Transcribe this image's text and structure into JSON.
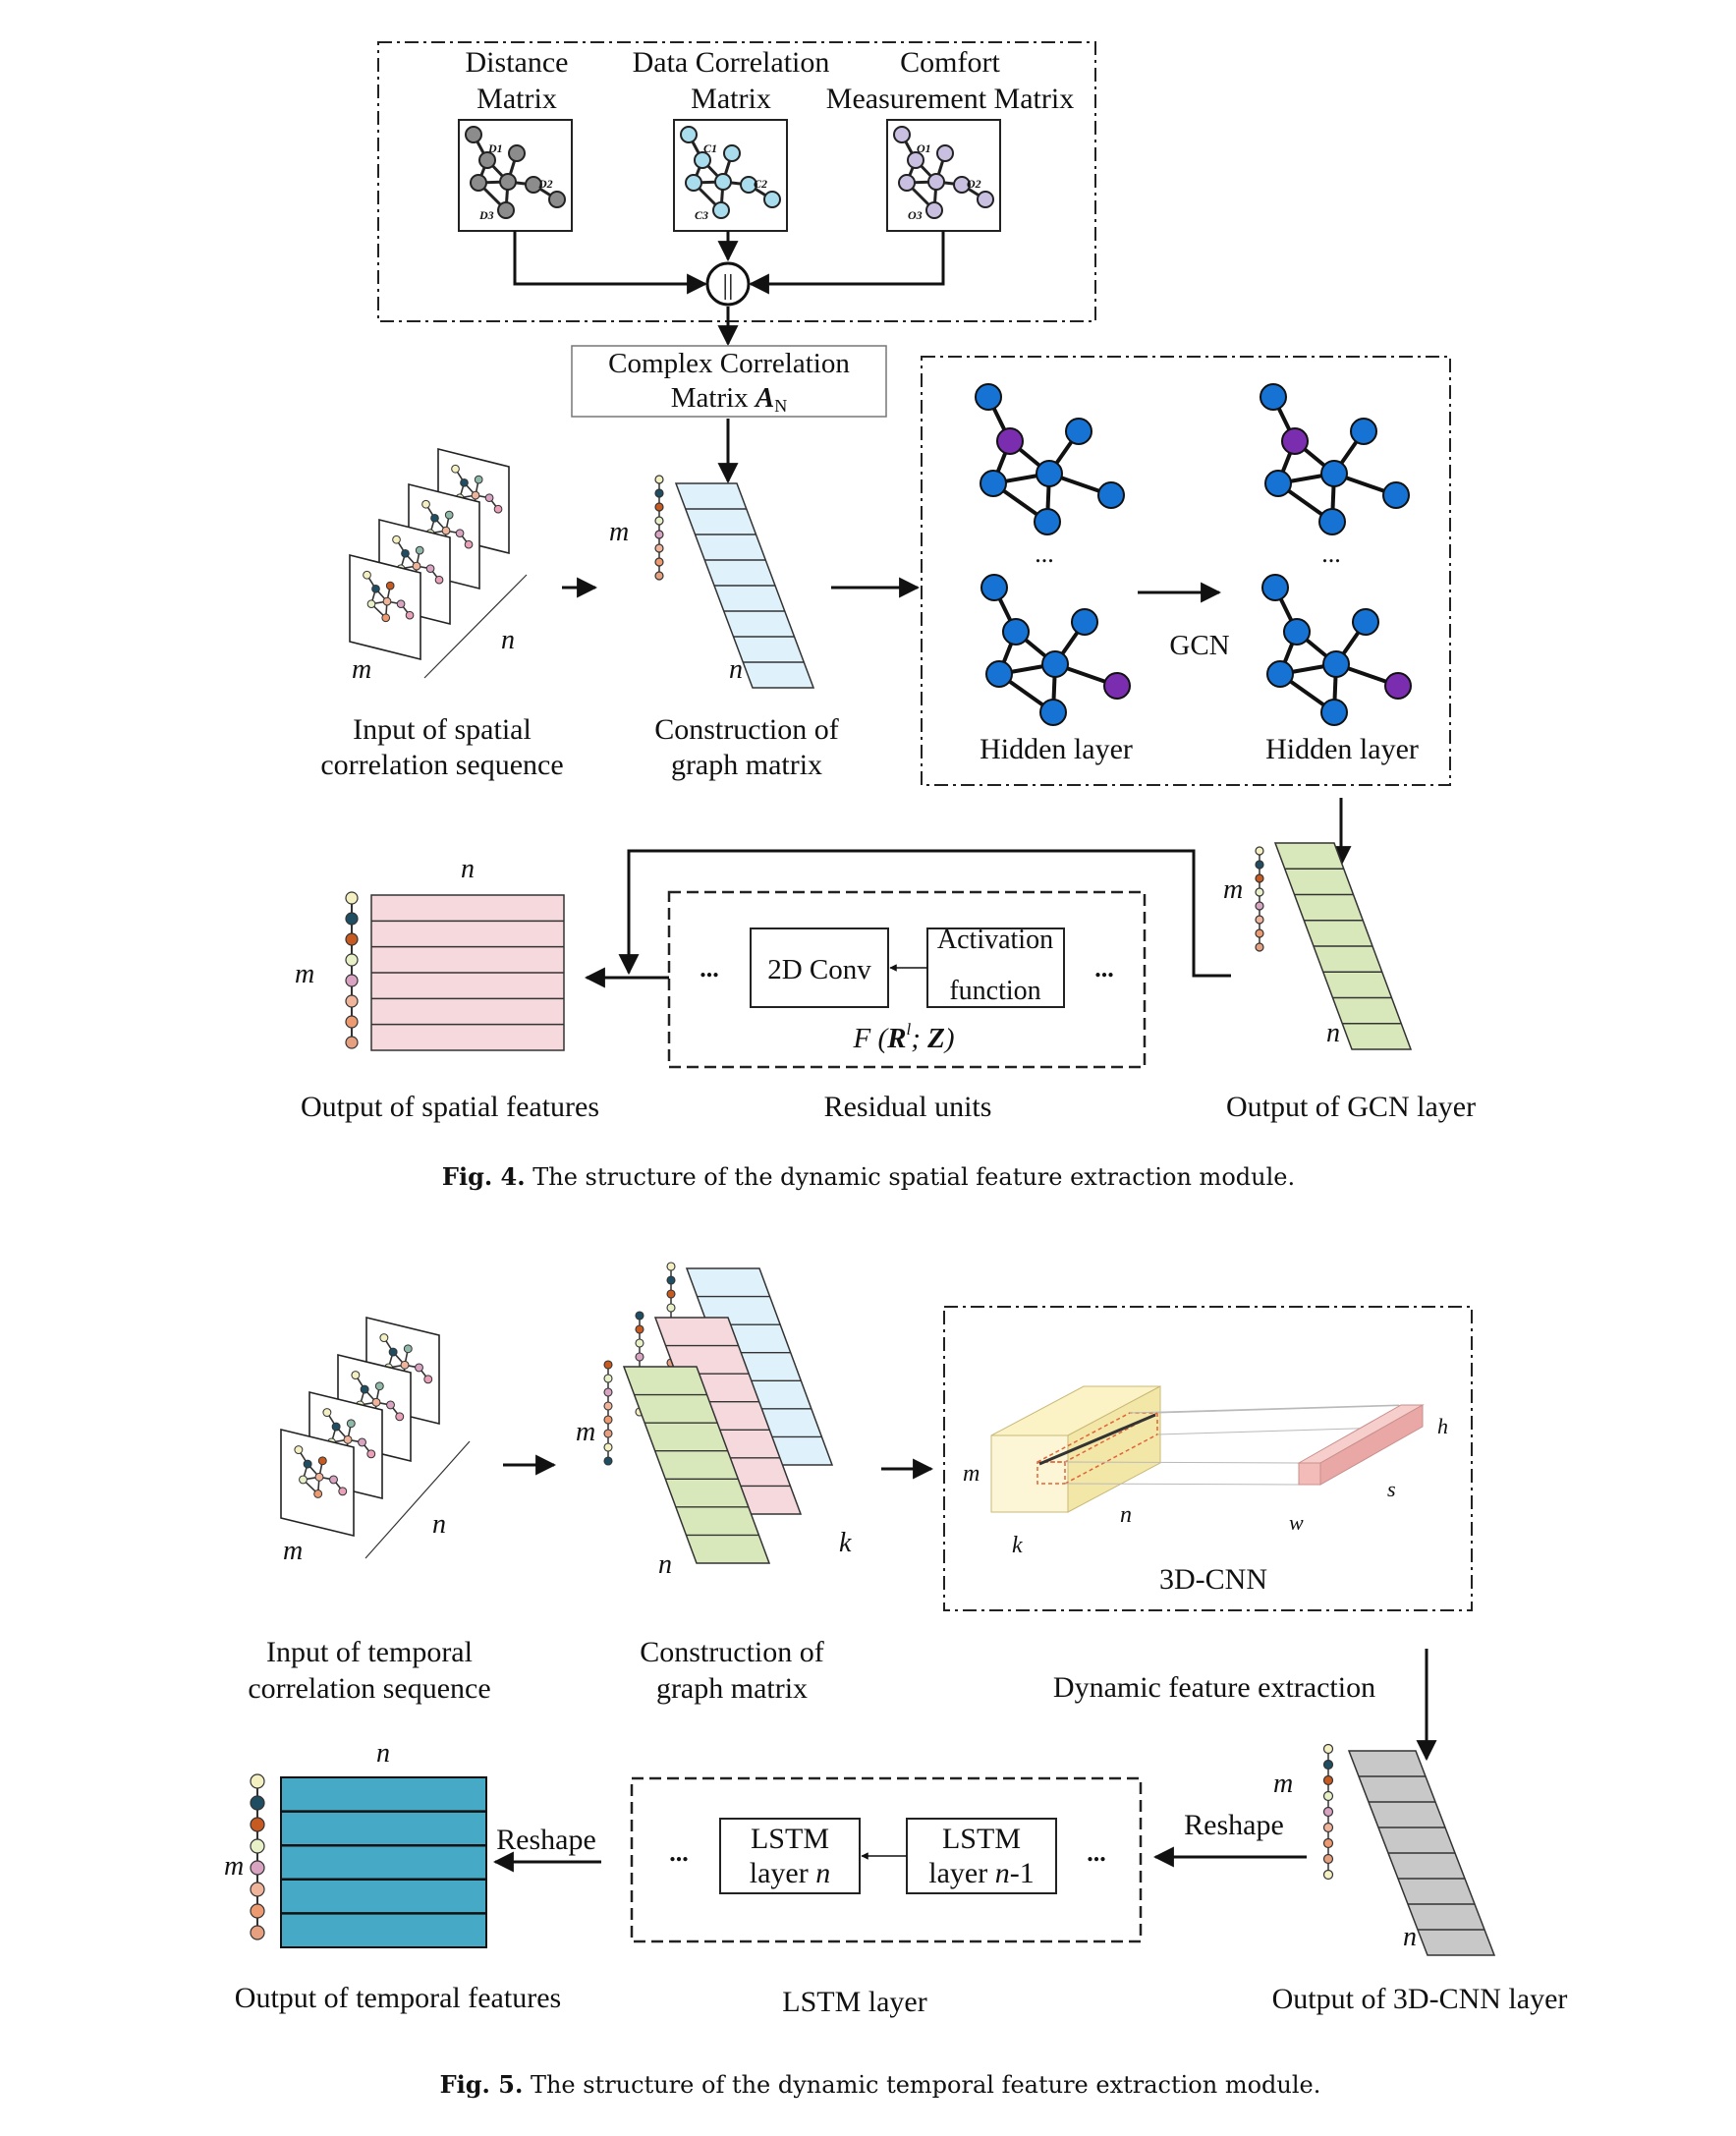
{
  "fig4": {
    "inputs": {
      "distance": [
        "Distance",
        "Matrix"
      ],
      "data_corr": [
        "Data Correlation",
        "Matrix"
      ],
      "comfort": [
        "Comfort",
        "Measurement Matrix"
      ],
      "d_nodes": [
        "D1",
        "D2",
        "D3"
      ],
      "c_nodes": [
        "C1",
        "C2",
        "C3"
      ],
      "o_nodes": [
        "O1",
        "O2",
        "O3"
      ]
    },
    "concat_symbol": "||",
    "complex_matrix": [
      "Complex Correlation",
      "Matrix ",
      "A",
      "N"
    ],
    "dim_m": "m",
    "dim_n": "n",
    "dots": "...",
    "input_label": [
      "Input of spatial",
      "correlation sequence"
    ],
    "construction_label": [
      "Construction of",
      "graph matrix"
    ],
    "gcn_label": "GCN",
    "hidden_label": "Hidden layer",
    "residual": {
      "conv": "2D Conv",
      "activation": [
        "Activation",
        "function"
      ],
      "formula": {
        "F": "F",
        "open": "(",
        "R": "R",
        "sup": "l",
        "sep": "; ",
        "Z": "Z",
        "close": ")"
      },
      "label": "Residual units"
    },
    "output_spatial_label": "Output of spatial features",
    "output_gcn_label": "Output of GCN layer",
    "caption": {
      "num": "Fig. 4.",
      "text": "The structure of the dynamic spatial feature extraction module."
    }
  },
  "fig5": {
    "input_label": [
      "Input of temporal",
      "correlation sequence"
    ],
    "construction_label": [
      "Construction of",
      "graph matrix"
    ],
    "dim_k": "k",
    "dim_m": "m",
    "dim_n": "n",
    "cnn_dims": {
      "h": "h",
      "s": "s",
      "w": "w"
    },
    "cnn_label": "3D-CNN",
    "dynamic_label": "Dynamic feature extraction",
    "reshape_label": "Reshape",
    "lstm_n": [
      "LSTM",
      "layer ",
      "n"
    ],
    "lstm_n1": [
      "LSTM",
      "layer ",
      "n",
      "-1"
    ],
    "dots": "...",
    "output_temporal_label": "Output of temporal features",
    "lstm_layer_label": "LSTM layer",
    "output_cnn_label": "Output of 3D-CNN layer",
    "caption": {
      "num": "Fig. 5.",
      "text": "The structure of the dynamic temporal feature extraction module."
    }
  },
  "colors": {
    "gcn_blue": "#1673d4",
    "gcn_purple": "#7b2db0",
    "light_blue": "#dff1fb",
    "pink": "#f6d9dc",
    "green": "#d9e8bb",
    "gray": "#c8c8c8",
    "teal": "#46a9c6",
    "yellow_box": "#fbf3c6",
    "salmon": "#f0b5b2"
  }
}
